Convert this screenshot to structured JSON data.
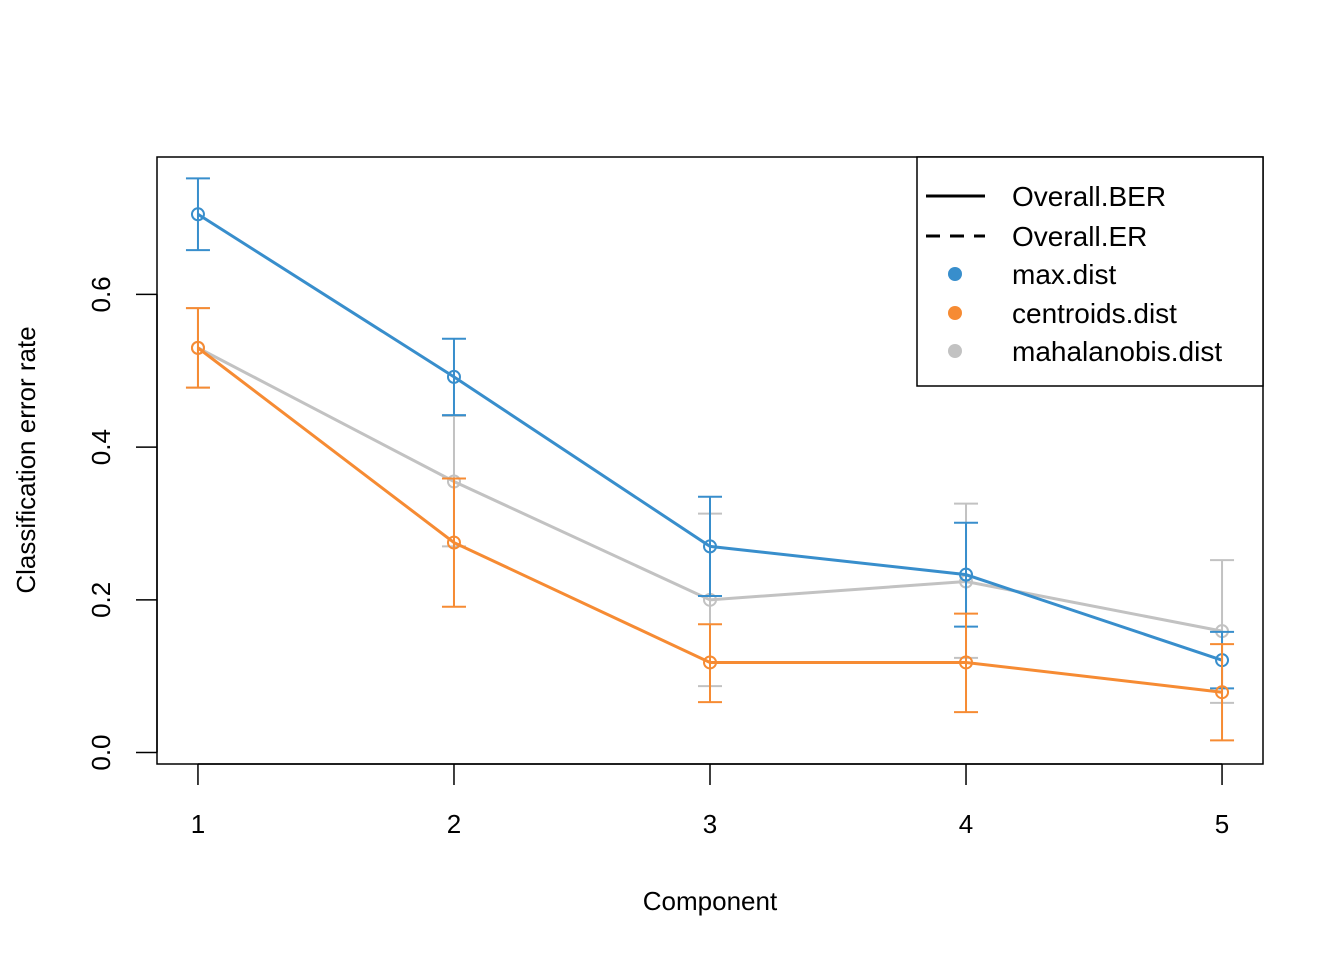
{
  "chart_data": {
    "type": "line",
    "xlabel": "Component",
    "ylabel": "Classification error rate",
    "x": [
      1,
      2,
      3,
      4,
      5
    ],
    "xlim": [
      0.84,
      5.16
    ],
    "ylim": [
      -0.015,
      0.78
    ],
    "yticks": [
      0.0,
      0.2,
      0.4,
      0.6
    ],
    "ytick_labels": [
      "0.0",
      "0.2",
      "0.4",
      "0.6"
    ],
    "xtick_labels": [
      "1",
      "2",
      "3",
      "4",
      "5"
    ],
    "legend_position": "top-right",
    "legend": [
      {
        "label": "Overall.BER",
        "kind": "line-solid",
        "color": "#000000"
      },
      {
        "label": "Overall.ER",
        "kind": "line-dashed",
        "color": "#000000"
      },
      {
        "label": "max.dist",
        "kind": "dot",
        "color": "#388ECC"
      },
      {
        "label": "centroids.dist",
        "kind": "dot",
        "color": "#F68B33"
      },
      {
        "label": "mahalanobis.dist",
        "kind": "dot",
        "color": "#C2C2C2"
      }
    ],
    "series": [
      {
        "name": "max.dist",
        "color": "#388ECC",
        "values": [
          0.705,
          0.492,
          0.27,
          0.233,
          0.121
        ],
        "err_low": [
          0.658,
          0.442,
          0.205,
          0.165,
          0.084
        ],
        "err_high": [
          0.752,
          0.542,
          0.335,
          0.301,
          0.158
        ]
      },
      {
        "name": "centroids.dist",
        "color": "#F68B33",
        "values": [
          0.53,
          0.275,
          0.118,
          0.118,
          0.079
        ],
        "err_low": [
          0.478,
          0.191,
          0.066,
          0.053,
          0.016
        ],
        "err_high": [
          0.582,
          0.359,
          0.168,
          0.182,
          0.142
        ]
      },
      {
        "name": "mahalanobis.dist",
        "color": "#C2C2C2",
        "values": [
          0.53,
          0.355,
          0.2,
          0.224,
          0.159
        ],
        "err_low": [
          0.478,
          0.27,
          0.087,
          0.124,
          0.065
        ],
        "err_high": [
          0.582,
          0.441,
          0.313,
          0.326,
          0.252
        ]
      }
    ]
  }
}
